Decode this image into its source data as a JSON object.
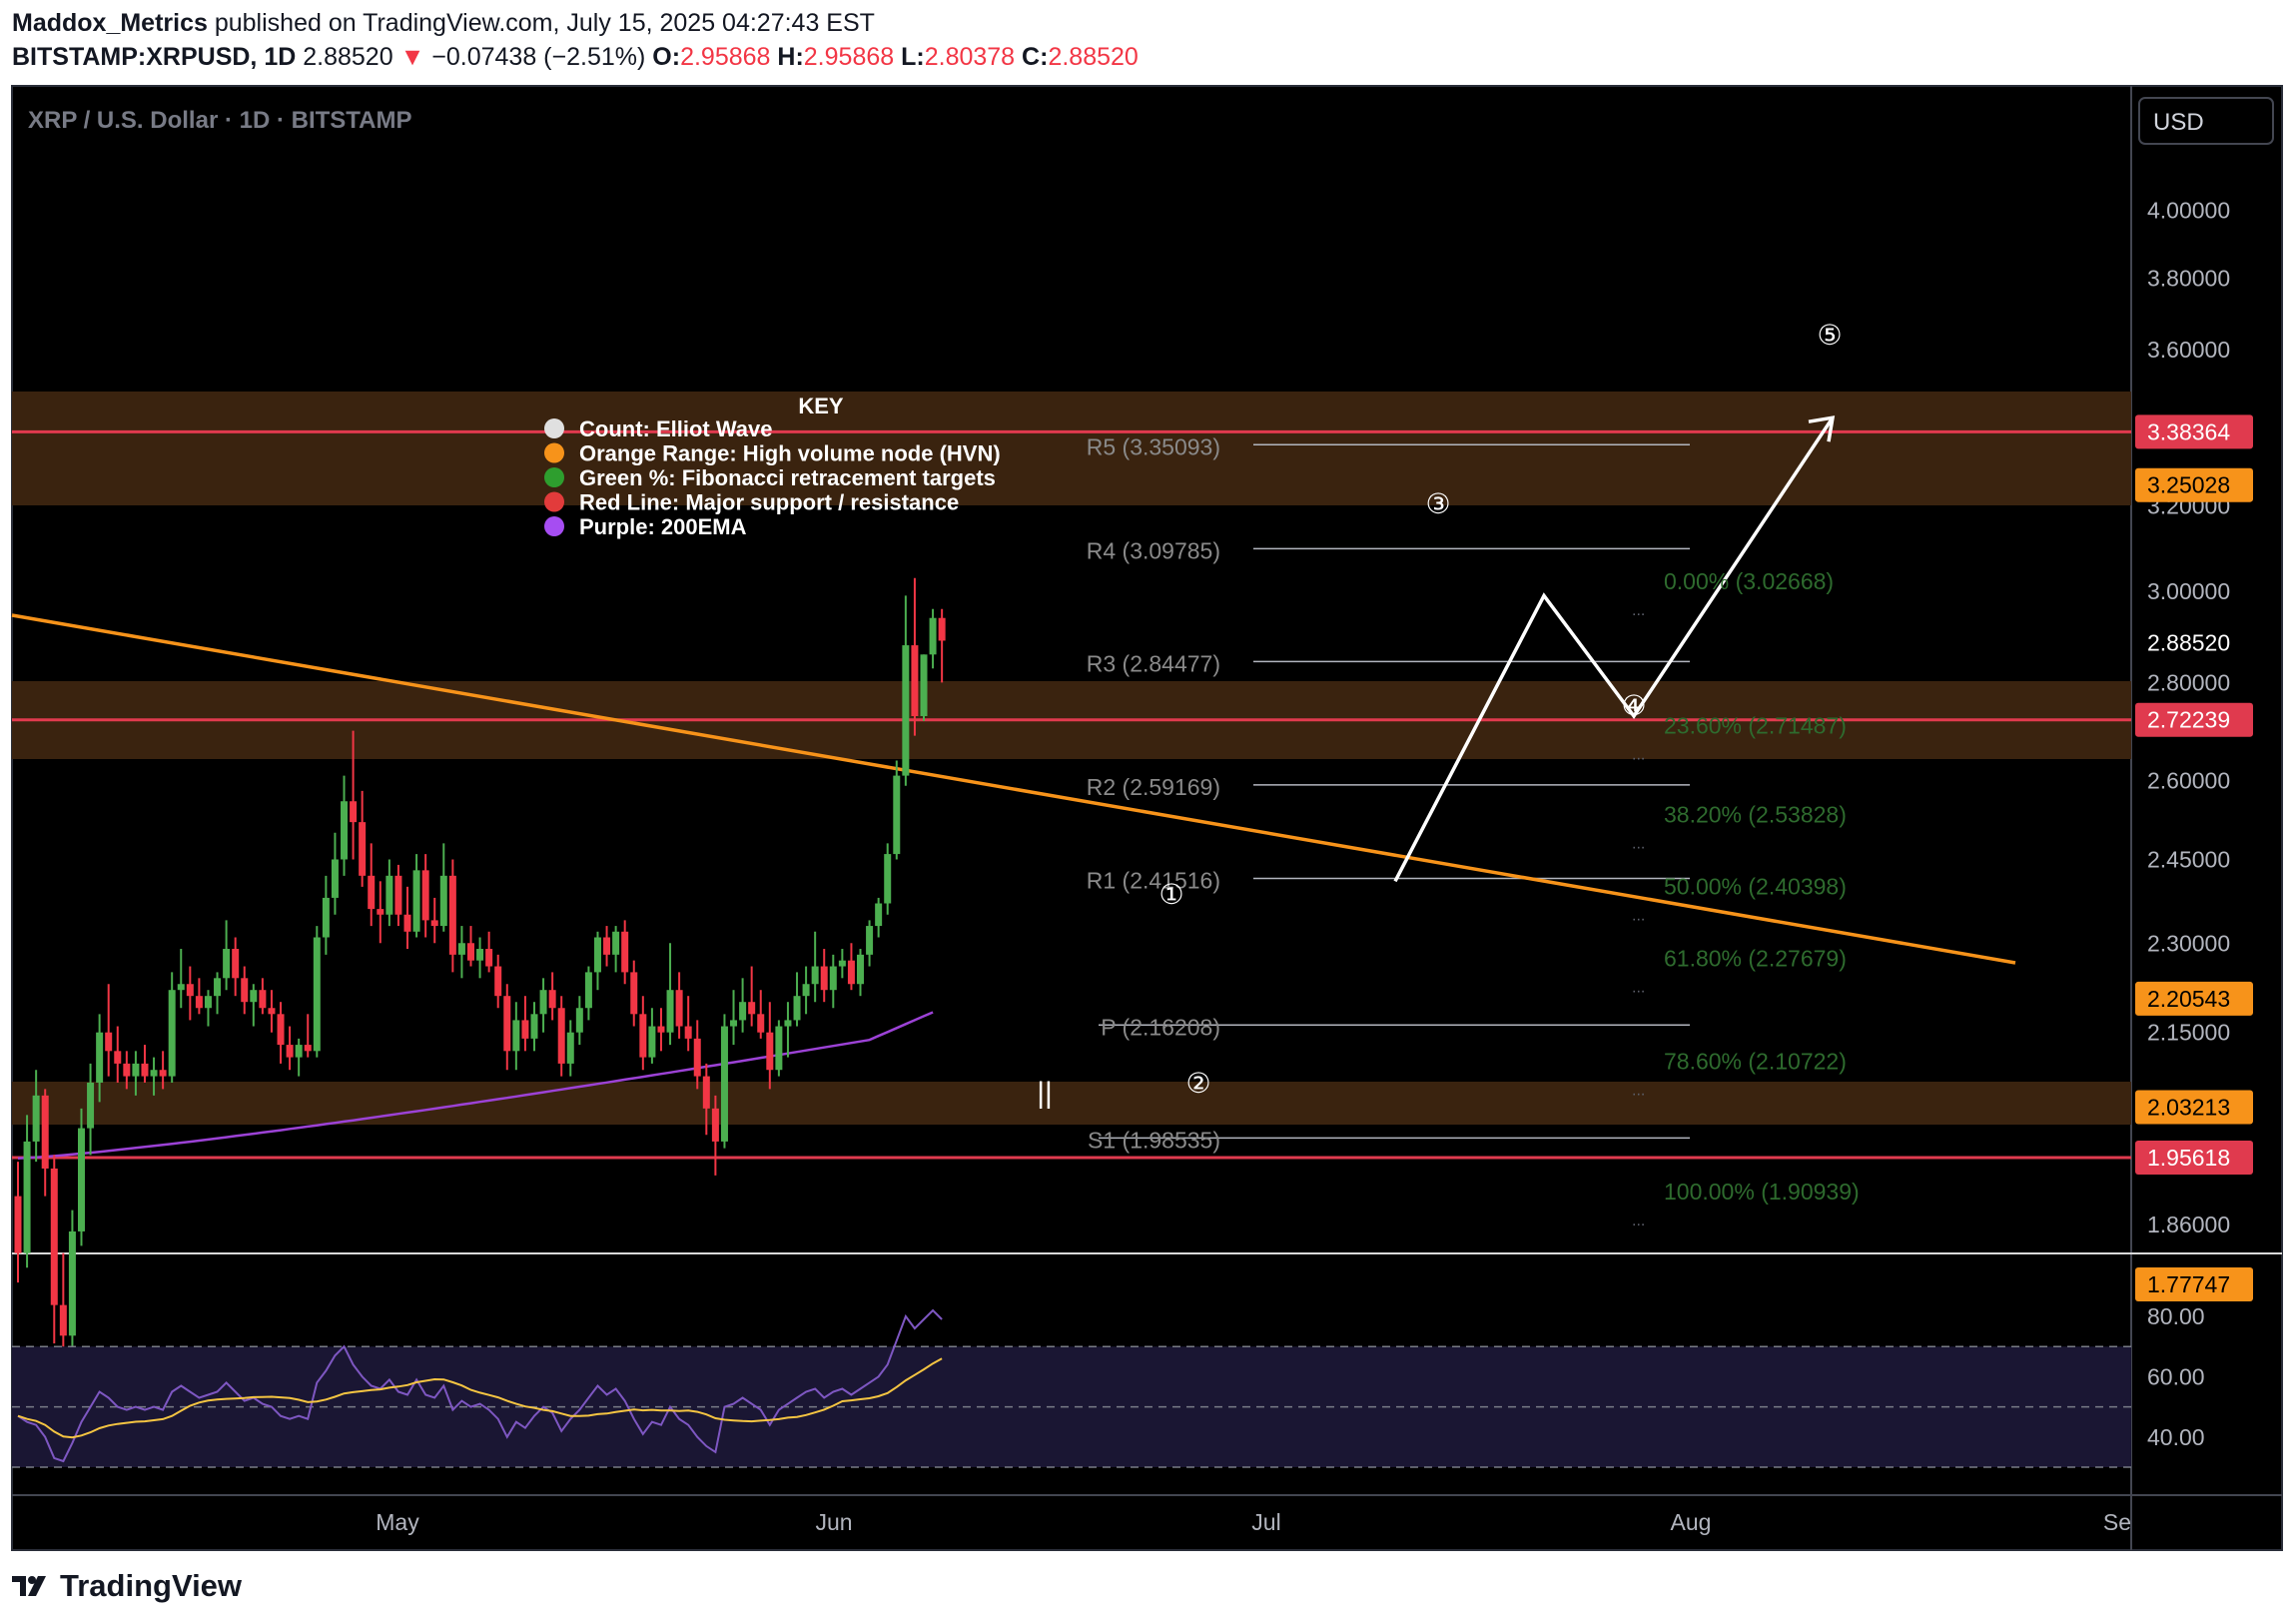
{
  "header": {
    "author": "Maddox_Metrics",
    "published": "published on TradingView.com, July 15, 2025 04:27:43 EST",
    "symbol": "BITSTAMP:XRPUSD, 1D",
    "last": "2.88520",
    "change_arrow": "▼",
    "change": "−0.07438 (−2.51%)",
    "o_label": "O:",
    "o_value": "2.95868",
    "h_label": "H:",
    "h_value": "2.95868",
    "l_label": "L:",
    "l_value": "2.80378",
    "c_label": "C:",
    "c_value": "2.88520"
  },
  "pane_title": "XRP / U.S. Dollar · 1D · BITSTAMP",
  "currency_button": "USD",
  "footer": {
    "brand": "TradingView"
  },
  "colors": {
    "background": "#000000",
    "up": "#4caf50",
    "down": "#f23645",
    "hvn": "#3d2510",
    "resistance_line": "#e03a4e",
    "trendline": "#f7931a",
    "ema": "#9c42d6",
    "fib_text": "#2e6b2e",
    "pivot_text": "#8a8a8a",
    "rsi": "#7e57c2",
    "rsi_ma": "#f5c542"
  },
  "chart_data": {
    "type": "candlestick",
    "title": "XRP / U.S. Dollar · 1D · BITSTAMP",
    "interval": "1D",
    "x_dates": [
      "2025-04-06",
      "2025-09-01"
    ],
    "x_tick_labels": [
      "May",
      "Jun",
      "Jul",
      "Aug",
      "Se"
    ],
    "y_tick_labels": [
      "4.00000",
      "3.80000",
      "3.60000",
      "3.20000",
      "3.00000",
      "2.80000",
      "2.60000",
      "2.45000",
      "2.30000",
      "2.15000",
      "1.86000"
    ],
    "ylim": [
      1.72,
      4.12
    ],
    "scale": "log",
    "price_tags": [
      {
        "value": "3.38364",
        "kind": "resistance"
      },
      {
        "value": "3.25028",
        "kind": "hvn"
      },
      {
        "value": "2.88520",
        "kind": "last"
      },
      {
        "value": "2.72239",
        "kind": "resistance"
      },
      {
        "value": "2.20543",
        "kind": "trendline"
      },
      {
        "value": "2.03213",
        "kind": "hvn"
      },
      {
        "value": "1.95618",
        "kind": "resistance"
      },
      {
        "value": "1.77747",
        "kind": "hvn"
      }
    ],
    "candles": [
      [
        1.9,
        1.95,
        1.78,
        1.82
      ],
      [
        1.82,
        2.02,
        1.8,
        1.98
      ],
      [
        1.98,
        2.09,
        1.95,
        2.05
      ],
      [
        2.05,
        2.06,
        1.9,
        1.94
      ],
      [
        1.94,
        1.96,
        1.7,
        1.75
      ],
      [
        1.75,
        1.82,
        1.65,
        1.71
      ],
      [
        1.71,
        1.88,
        1.68,
        1.85
      ],
      [
        1.85,
        2.03,
        1.83,
        2.0
      ],
      [
        2.0,
        2.1,
        1.96,
        2.07
      ],
      [
        2.07,
        2.18,
        2.04,
        2.15
      ],
      [
        2.15,
        2.23,
        2.08,
        2.12
      ],
      [
        2.12,
        2.16,
        2.07,
        2.1
      ],
      [
        2.1,
        2.12,
        2.06,
        2.08
      ],
      [
        2.08,
        2.12,
        2.05,
        2.1
      ],
      [
        2.1,
        2.13,
        2.07,
        2.08
      ],
      [
        2.08,
        2.11,
        2.05,
        2.09
      ],
      [
        2.09,
        2.12,
        2.06,
        2.08
      ],
      [
        2.08,
        2.25,
        2.07,
        2.22
      ],
      [
        2.22,
        2.29,
        2.19,
        2.23
      ],
      [
        2.23,
        2.26,
        2.17,
        2.21
      ],
      [
        2.21,
        2.24,
        2.18,
        2.19
      ],
      [
        2.19,
        2.22,
        2.16,
        2.21
      ],
      [
        2.21,
        2.25,
        2.18,
        2.24
      ],
      [
        2.24,
        2.34,
        2.22,
        2.29
      ],
      [
        2.29,
        2.31,
        2.21,
        2.24
      ],
      [
        2.24,
        2.26,
        2.18,
        2.2
      ],
      [
        2.2,
        2.23,
        2.16,
        2.22
      ],
      [
        2.22,
        2.24,
        2.18,
        2.19
      ],
      [
        2.19,
        2.22,
        2.15,
        2.18
      ],
      [
        2.18,
        2.2,
        2.1,
        2.13
      ],
      [
        2.13,
        2.16,
        2.09,
        2.11
      ],
      [
        2.11,
        2.14,
        2.08,
        2.13
      ],
      [
        2.13,
        2.18,
        2.11,
        2.12
      ],
      [
        2.12,
        2.33,
        2.11,
        2.31
      ],
      [
        2.31,
        2.42,
        2.28,
        2.38
      ],
      [
        2.38,
        2.5,
        2.35,
        2.45
      ],
      [
        2.45,
        2.61,
        2.42,
        2.56
      ],
      [
        2.56,
        2.7,
        2.45,
        2.52
      ],
      [
        2.52,
        2.58,
        2.4,
        2.42
      ],
      [
        2.42,
        2.48,
        2.33,
        2.36
      ],
      [
        2.36,
        2.41,
        2.3,
        2.35
      ],
      [
        2.35,
        2.45,
        2.33,
        2.42
      ],
      [
        2.42,
        2.44,
        2.33,
        2.35
      ],
      [
        2.35,
        2.4,
        2.29,
        2.32
      ],
      [
        2.32,
        2.46,
        2.31,
        2.43
      ],
      [
        2.43,
        2.46,
        2.31,
        2.34
      ],
      [
        2.34,
        2.38,
        2.3,
        2.33
      ],
      [
        2.33,
        2.48,
        2.32,
        2.42
      ],
      [
        2.42,
        2.45,
        2.25,
        2.28
      ],
      [
        2.28,
        2.33,
        2.24,
        2.3
      ],
      [
        2.3,
        2.33,
        2.26,
        2.27
      ],
      [
        2.27,
        2.31,
        2.24,
        2.29
      ],
      [
        2.29,
        2.32,
        2.25,
        2.26
      ],
      [
        2.26,
        2.28,
        2.19,
        2.21
      ],
      [
        2.21,
        2.23,
        2.09,
        2.12
      ],
      [
        2.12,
        2.2,
        2.09,
        2.17
      ],
      [
        2.17,
        2.21,
        2.12,
        2.14
      ],
      [
        2.14,
        2.2,
        2.12,
        2.18
      ],
      [
        2.18,
        2.24,
        2.15,
        2.22
      ],
      [
        2.22,
        2.25,
        2.17,
        2.19
      ],
      [
        2.19,
        2.21,
        2.08,
        2.1
      ],
      [
        2.1,
        2.17,
        2.08,
        2.15
      ],
      [
        2.15,
        2.21,
        2.13,
        2.19
      ],
      [
        2.19,
        2.26,
        2.17,
        2.25
      ],
      [
        2.25,
        2.32,
        2.22,
        2.31
      ],
      [
        2.31,
        2.33,
        2.26,
        2.28
      ],
      [
        2.28,
        2.33,
        2.25,
        2.32
      ],
      [
        2.32,
        2.34,
        2.23,
        2.25
      ],
      [
        2.25,
        2.27,
        2.16,
        2.18
      ],
      [
        2.18,
        2.21,
        2.09,
        2.11
      ],
      [
        2.11,
        2.19,
        2.1,
        2.16
      ],
      [
        2.16,
        2.19,
        2.12,
        2.15
      ],
      [
        2.15,
        2.3,
        2.13,
        2.22
      ],
      [
        2.22,
        2.25,
        2.14,
        2.16
      ],
      [
        2.16,
        2.21,
        2.12,
        2.14
      ],
      [
        2.14,
        2.17,
        2.06,
        2.08
      ],
      [
        2.08,
        2.1,
        1.99,
        2.03
      ],
      [
        2.03,
        2.05,
        1.93,
        1.98
      ],
      [
        1.98,
        2.18,
        1.97,
        2.16
      ],
      [
        2.16,
        2.22,
        2.13,
        2.17
      ],
      [
        2.17,
        2.24,
        2.15,
        2.2
      ],
      [
        2.2,
        2.26,
        2.16,
        2.18
      ],
      [
        2.18,
        2.22,
        2.14,
        2.15
      ],
      [
        2.15,
        2.2,
        2.06,
        2.09
      ],
      [
        2.09,
        2.17,
        2.08,
        2.16
      ],
      [
        2.16,
        2.2,
        2.11,
        2.17
      ],
      [
        2.17,
        2.25,
        2.16,
        2.21
      ],
      [
        2.21,
        2.26,
        2.18,
        2.23
      ],
      [
        2.23,
        2.32,
        2.2,
        2.26
      ],
      [
        2.26,
        2.29,
        2.2,
        2.22
      ],
      [
        2.22,
        2.28,
        2.19,
        2.26
      ],
      [
        2.26,
        2.29,
        2.24,
        2.27
      ],
      [
        2.27,
        2.3,
        2.22,
        2.23
      ],
      [
        2.23,
        2.29,
        2.21,
        2.28
      ],
      [
        2.28,
        2.34,
        2.26,
        2.33
      ],
      [
        2.33,
        2.38,
        2.31,
        2.37
      ],
      [
        2.37,
        2.48,
        2.35,
        2.46
      ],
      [
        2.46,
        2.64,
        2.45,
        2.61
      ],
      [
        2.61,
        2.99,
        2.59,
        2.88
      ],
      [
        2.88,
        3.03,
        2.69,
        2.73
      ],
      [
        2.73,
        2.86,
        2.72,
        2.86
      ],
      [
        2.86,
        2.96,
        2.83,
        2.94
      ],
      [
        2.94,
        2.96,
        2.8,
        2.89
      ]
    ],
    "ema200": "purple 200EMA rising from about 1.95 to 2.15",
    "resistance_lines": [
      "3.38364",
      "2.72239",
      "1.95618"
    ],
    "hvn_zones": [
      [
        "3.25028",
        "3.38364"
      ],
      [
        "2.58",
        "2.72239"
      ],
      [
        "2.03213",
        "1.95618"
      ]
    ],
    "pivots": [
      {
        "label": "R5 (3.35093)"
      },
      {
        "label": "R4 (3.09785)"
      },
      {
        "label": "R3 (2.84477)"
      },
      {
        "label": "R2 (2.59169)"
      },
      {
        "label": "R1 (2.41516)"
      },
      {
        "label": "P (2.16208)"
      },
      {
        "label": "S1 (1.98535)"
      }
    ],
    "fib_levels": [
      {
        "label": "0.00% (3.02668)"
      },
      {
        "label": "23.60% (2.71487)"
      },
      {
        "label": "38.20% (2.53828)"
      },
      {
        "label": "50.00% (2.40398)"
      },
      {
        "label": "61.80% (2.27679)"
      },
      {
        "label": "78.60% (2.10722)"
      },
      {
        "label": "100.00% (1.90939)"
      }
    ],
    "elliott_wave_labels": [
      "①",
      "②",
      "③",
      "④",
      "⑤"
    ],
    "projection": [
      2.41,
      2.99,
      2.73,
      3.42
    ],
    "key": {
      "title": "KEY",
      "items": [
        {
          "color": "#e0e0e0",
          "text": "Count: Elliot Wave"
        },
        {
          "color": "#f7931a",
          "text": "Orange Range: High volume node (HVN)"
        },
        {
          "color": "#2e9e2e",
          "text": "Green %: Fibonacci retracement targets"
        },
        {
          "color": "#e23b3b",
          "text": "Red Line: Major support / resistance"
        },
        {
          "color": "#a64df2",
          "text": "Purple: 200EMA"
        }
      ]
    },
    "rsi": {
      "tick_labels": [
        "80.00",
        "60.00",
        "40.00"
      ],
      "ylim": [
        20,
        100
      ],
      "bands": [
        70,
        50,
        30
      ],
      "values": [
        47,
        45,
        44,
        40,
        33,
        32,
        38,
        45,
        50,
        55,
        53,
        50,
        49,
        50,
        49,
        50,
        49,
        55,
        57,
        55,
        53,
        54,
        55,
        58,
        55,
        52,
        53,
        51,
        50,
        47,
        46,
        47,
        46,
        58,
        62,
        67,
        70,
        64,
        60,
        57,
        56,
        59,
        55,
        54,
        59,
        54,
        53,
        57,
        49,
        52,
        50,
        51,
        49,
        46,
        40,
        45,
        43,
        47,
        50,
        48,
        42,
        46,
        49,
        53,
        57,
        54,
        56,
        52,
        46,
        41,
        45,
        44,
        50,
        46,
        44,
        40,
        37,
        35,
        50,
        51,
        53,
        51,
        49,
        44,
        49,
        51,
        53,
        55,
        56,
        53,
        55,
        56,
        54,
        56,
        58,
        60,
        64,
        72,
        80,
        76,
        79,
        82,
        79
      ]
    }
  }
}
